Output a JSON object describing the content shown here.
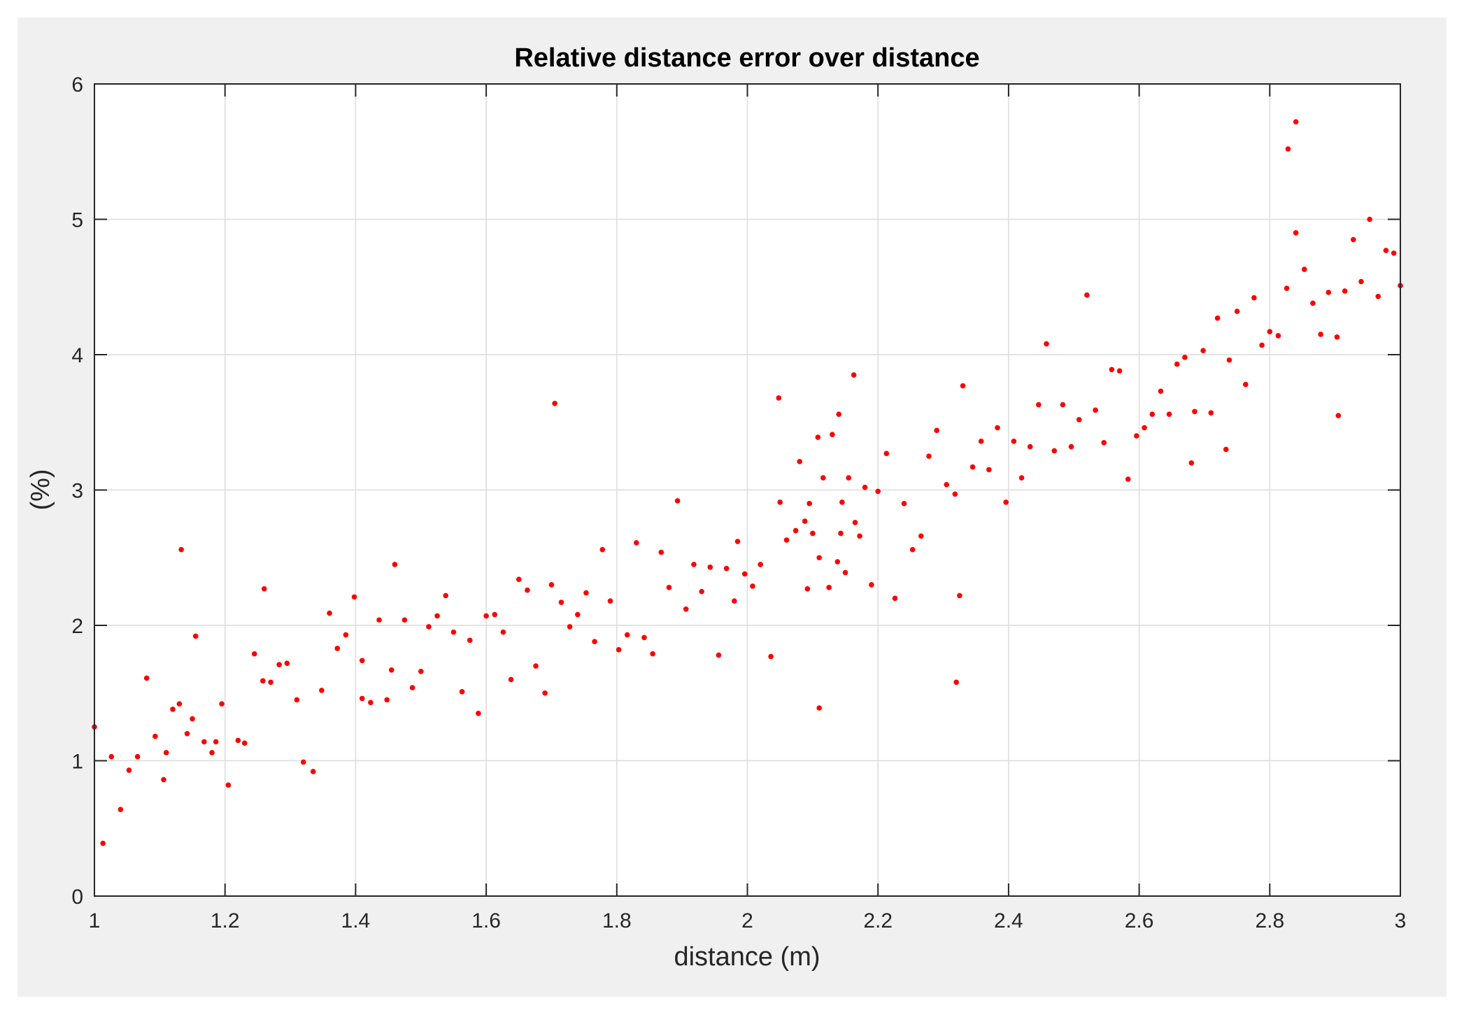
{
  "colors": {
    "figure_bg": "#f0f0f0",
    "axes_bg": "#ffffff",
    "axis_color": "#262626",
    "grid_color": "#dcdcdc",
    "marker_color": "#ff0000"
  },
  "chart_data": {
    "type": "scatter",
    "title": "Relative distance error over distance",
    "xlabel": "distance (m)",
    "ylabel": "(%)",
    "xlim": [
      1,
      3
    ],
    "ylim": [
      0,
      6
    ],
    "xticks": [
      1,
      1.2,
      1.4,
      1.6,
      1.8,
      2,
      2.2,
      2.4,
      2.6,
      2.8,
      3
    ],
    "xtick_labels": [
      "1",
      "1.2",
      "1.4",
      "1.6",
      "1.8",
      "2",
      "2.2",
      "2.4",
      "2.6",
      "2.8",
      "3"
    ],
    "yticks": [
      0,
      1,
      2,
      3,
      4,
      5,
      6
    ],
    "ytick_labels": [
      "0",
      "1",
      "2",
      "3",
      "4",
      "5",
      "6"
    ],
    "grid": true,
    "series": [
      {
        "color": "#ff0000",
        "marker": "dot",
        "points": [
          [
            1.0,
            1.25
          ],
          [
            1.013,
            0.39
          ],
          [
            1.026,
            1.03
          ],
          [
            1.04,
            0.64
          ],
          [
            1.053,
            0.93
          ],
          [
            1.066,
            1.03
          ],
          [
            1.08,
            1.61
          ],
          [
            1.093,
            1.18
          ],
          [
            1.106,
            0.86
          ],
          [
            1.11,
            1.06
          ],
          [
            1.12,
            1.38
          ],
          [
            1.13,
            1.42
          ],
          [
            1.133,
            2.56
          ],
          [
            1.142,
            1.2
          ],
          [
            1.15,
            1.31
          ],
          [
            1.155,
            1.92
          ],
          [
            1.168,
            1.14
          ],
          [
            1.18,
            1.06
          ],
          [
            1.186,
            1.14
          ],
          [
            1.195,
            1.42
          ],
          [
            1.205,
            0.82
          ],
          [
            1.22,
            1.15
          ],
          [
            1.23,
            1.13
          ],
          [
            1.245,
            1.79
          ],
          [
            1.258,
            1.59
          ],
          [
            1.26,
            2.27
          ],
          [
            1.27,
            1.58
          ],
          [
            1.283,
            1.71
          ],
          [
            1.295,
            1.72
          ],
          [
            1.31,
            1.45
          ],
          [
            1.32,
            0.99
          ],
          [
            1.335,
            0.92
          ],
          [
            1.348,
            1.52
          ],
          [
            1.36,
            2.09
          ],
          [
            1.372,
            1.83
          ],
          [
            1.385,
            1.93
          ],
          [
            1.398,
            2.21
          ],
          [
            1.41,
            1.74
          ],
          [
            1.41,
            1.46
          ],
          [
            1.423,
            1.43
          ],
          [
            1.436,
            2.04
          ],
          [
            1.448,
            1.45
          ],
          [
            1.455,
            1.67
          ],
          [
            1.46,
            2.45
          ],
          [
            1.475,
            2.04
          ],
          [
            1.487,
            1.54
          ],
          [
            1.5,
            1.66
          ],
          [
            1.512,
            1.99
          ],
          [
            1.525,
            2.07
          ],
          [
            1.538,
            2.22
          ],
          [
            1.55,
            1.95
          ],
          [
            1.563,
            1.51
          ],
          [
            1.575,
            1.89
          ],
          [
            1.588,
            1.35
          ],
          [
            1.6,
            2.07
          ],
          [
            1.613,
            2.08
          ],
          [
            1.626,
            1.95
          ],
          [
            1.638,
            1.6
          ],
          [
            1.65,
            2.34
          ],
          [
            1.663,
            2.26
          ],
          [
            1.676,
            1.7
          ],
          [
            1.69,
            1.5
          ],
          [
            1.7,
            2.3
          ],
          [
            1.705,
            3.64
          ],
          [
            1.715,
            2.17
          ],
          [
            1.728,
            1.99
          ],
          [
            1.74,
            2.08
          ],
          [
            1.753,
            2.24
          ],
          [
            1.766,
            1.88
          ],
          [
            1.778,
            2.56
          ],
          [
            1.79,
            2.18
          ],
          [
            1.803,
            1.82
          ],
          [
            1.816,
            1.93
          ],
          [
            1.83,
            2.61
          ],
          [
            1.842,
            1.91
          ],
          [
            1.855,
            1.79
          ],
          [
            1.868,
            2.54
          ],
          [
            1.88,
            2.28
          ],
          [
            1.893,
            2.92
          ],
          [
            1.906,
            2.12
          ],
          [
            1.918,
            2.45
          ],
          [
            1.93,
            2.25
          ],
          [
            1.943,
            2.43
          ],
          [
            1.956,
            1.78
          ],
          [
            1.968,
            2.42
          ],
          [
            1.98,
            2.18
          ],
          [
            1.985,
            2.62
          ],
          [
            1.996,
            2.38
          ],
          [
            2.008,
            2.29
          ],
          [
            2.02,
            2.45
          ],
          [
            2.036,
            1.77
          ],
          [
            2.048,
            3.68
          ],
          [
            2.05,
            2.91
          ],
          [
            2.06,
            2.63
          ],
          [
            2.074,
            2.7
          ],
          [
            2.08,
            3.21
          ],
          [
            2.088,
            2.77
          ],
          [
            2.092,
            2.27
          ],
          [
            2.095,
            2.9
          ],
          [
            2.1,
            2.68
          ],
          [
            2.108,
            3.39
          ],
          [
            2.11,
            1.39
          ],
          [
            2.11,
            2.5
          ],
          [
            2.116,
            3.09
          ],
          [
            2.125,
            2.28
          ],
          [
            2.13,
            3.41
          ],
          [
            2.138,
            2.47
          ],
          [
            2.14,
            3.56
          ],
          [
            2.143,
            2.68
          ],
          [
            2.145,
            2.91
          ],
          [
            2.15,
            2.39
          ],
          [
            2.155,
            3.09
          ],
          [
            2.163,
            3.85
          ],
          [
            2.165,
            2.76
          ],
          [
            2.172,
            2.66
          ],
          [
            2.18,
            3.02
          ],
          [
            2.19,
            2.3
          ],
          [
            2.2,
            2.99
          ],
          [
            2.213,
            3.27
          ],
          [
            2.226,
            2.2
          ],
          [
            2.24,
            2.9
          ],
          [
            2.253,
            2.56
          ],
          [
            2.266,
            2.66
          ],
          [
            2.278,
            3.25
          ],
          [
            2.29,
            3.44
          ],
          [
            2.305,
            3.04
          ],
          [
            2.318,
            2.97
          ],
          [
            2.32,
            1.58
          ],
          [
            2.325,
            2.22
          ],
          [
            2.33,
            3.77
          ],
          [
            2.345,
            3.17
          ],
          [
            2.358,
            3.36
          ],
          [
            2.37,
            3.15
          ],
          [
            2.383,
            3.46
          ],
          [
            2.396,
            2.91
          ],
          [
            2.408,
            3.36
          ],
          [
            2.42,
            3.09
          ],
          [
            2.433,
            3.32
          ],
          [
            2.446,
            3.63
          ],
          [
            2.458,
            4.08
          ],
          [
            2.47,
            3.29
          ],
          [
            2.483,
            3.63
          ],
          [
            2.496,
            3.32
          ],
          [
            2.508,
            3.52
          ],
          [
            2.52,
            4.44
          ],
          [
            2.533,
            3.59
          ],
          [
            2.546,
            3.35
          ],
          [
            2.558,
            3.89
          ],
          [
            2.57,
            3.88
          ],
          [
            2.583,
            3.08
          ],
          [
            2.596,
            3.4
          ],
          [
            2.608,
            3.46
          ],
          [
            2.62,
            3.56
          ],
          [
            2.633,
            3.73
          ],
          [
            2.646,
            3.56
          ],
          [
            2.658,
            3.93
          ],
          [
            2.67,
            3.98
          ],
          [
            2.68,
            3.2
          ],
          [
            2.685,
            3.58
          ],
          [
            2.698,
            4.03
          ],
          [
            2.71,
            3.57
          ],
          [
            2.72,
            4.27
          ],
          [
            2.733,
            3.3
          ],
          [
            2.738,
            3.96
          ],
          [
            2.75,
            4.32
          ],
          [
            2.763,
            3.78
          ],
          [
            2.776,
            4.42
          ],
          [
            2.788,
            4.07
          ],
          [
            2.8,
            4.17
          ],
          [
            2.813,
            4.14
          ],
          [
            2.826,
            4.49
          ],
          [
            2.828,
            5.52
          ],
          [
            2.84,
            5.72
          ],
          [
            2.84,
            4.9
          ],
          [
            2.853,
            4.63
          ],
          [
            2.866,
            4.38
          ],
          [
            2.878,
            4.15
          ],
          [
            2.89,
            4.46
          ],
          [
            2.903,
            4.13
          ],
          [
            2.905,
            3.55
          ],
          [
            2.915,
            4.47
          ],
          [
            2.928,
            4.85
          ],
          [
            2.94,
            4.54
          ],
          [
            2.953,
            5.0
          ],
          [
            2.966,
            4.43
          ],
          [
            2.978,
            4.77
          ],
          [
            2.99,
            4.75
          ],
          [
            3.0,
            4.51
          ]
        ]
      }
    ]
  }
}
